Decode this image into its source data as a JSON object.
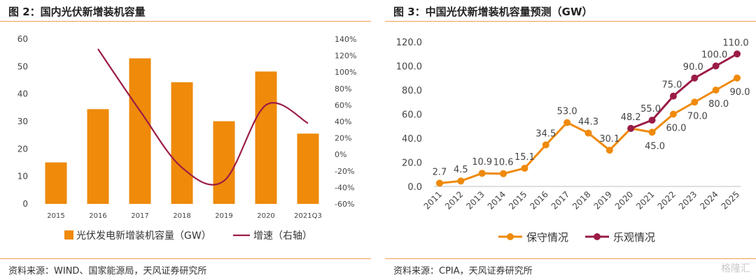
{
  "chart_data": [
    {
      "type": "bar",
      "title": "图 2：国内光伏新增装机容量",
      "categories": [
        "2015",
        "2016",
        "2017",
        "2018",
        "2019",
        "2020",
        "2021Q3"
      ],
      "series": [
        {
          "name": "光伏发电新增装机容量（GW）",
          "type": "bar",
          "axis": "left",
          "color": "#ef8a0a",
          "values": [
            15.1,
            34.5,
            53.0,
            44.3,
            30.1,
            48.2,
            25.6
          ]
        },
        {
          "name": "增速（右轴）",
          "type": "line",
          "axis": "right",
          "color": "#9b1c46",
          "values": [
            null,
            128,
            53,
            -16,
            -32,
            60,
            38
          ]
        }
      ],
      "ylim": [
        0,
        60
      ],
      "yticks": [
        "0",
        "10",
        "20",
        "30",
        "40",
        "50",
        "60"
      ],
      "y2lim": [
        -60,
        140
      ],
      "y2ticks": [
        "-60%",
        "-40%",
        "-20%",
        "0%",
        "20%",
        "40%",
        "60%",
        "80%",
        "100%",
        "120%",
        "140%"
      ],
      "legend": "bottom"
    },
    {
      "type": "line",
      "title": "图 3：中国光伏新增装机容量预测（GW）",
      "categories": [
        "2011",
        "2012",
        "2013",
        "2014",
        "2015",
        "2016",
        "2017",
        "2018",
        "2019",
        "2020",
        "2021",
        "2022",
        "2023",
        "2024",
        "2025"
      ],
      "series": [
        {
          "name": "保守情况",
          "color": "#ef8a0a",
          "values": [
            2.7,
            4.5,
            10.9,
            10.6,
            15.1,
            34.5,
            53.0,
            44.3,
            30.1,
            48.2,
            45.0,
            60.0,
            70.0,
            80.0,
            90.0
          ],
          "labels": [
            "2.7",
            "4.5",
            "10.9",
            "10.6",
            "15.1",
            "34.5",
            "53.0",
            "44.3",
            "30.1",
            "48.2",
            "45.0",
            "60.0",
            "70.0",
            "80.0",
            "90.0"
          ]
        },
        {
          "name": "乐观情况",
          "color": "#9b1c46",
          "values": [
            null,
            null,
            null,
            null,
            null,
            null,
            null,
            null,
            null,
            48.2,
            55.0,
            75.0,
            90.0,
            100.0,
            110.0
          ],
          "labels": [
            "",
            "",
            "",
            "",
            "",
            "",
            "",
            "",
            "",
            "",
            "55.0",
            "75.0",
            "90.0",
            "100.0",
            "110.0"
          ]
        }
      ],
      "ylim": [
        0,
        120
      ],
      "yticks": [
        "0.0",
        "20.0",
        "40.0",
        "60.0",
        "80.0",
        "100.0",
        "120.0"
      ],
      "legend": "bottom"
    }
  ],
  "sources": {
    "left": "资料来源：WIND、国家能源局，天风证券研究所",
    "right": "资料来源：CPIA，天风证券研究所"
  },
  "watermark": "格隆汇"
}
